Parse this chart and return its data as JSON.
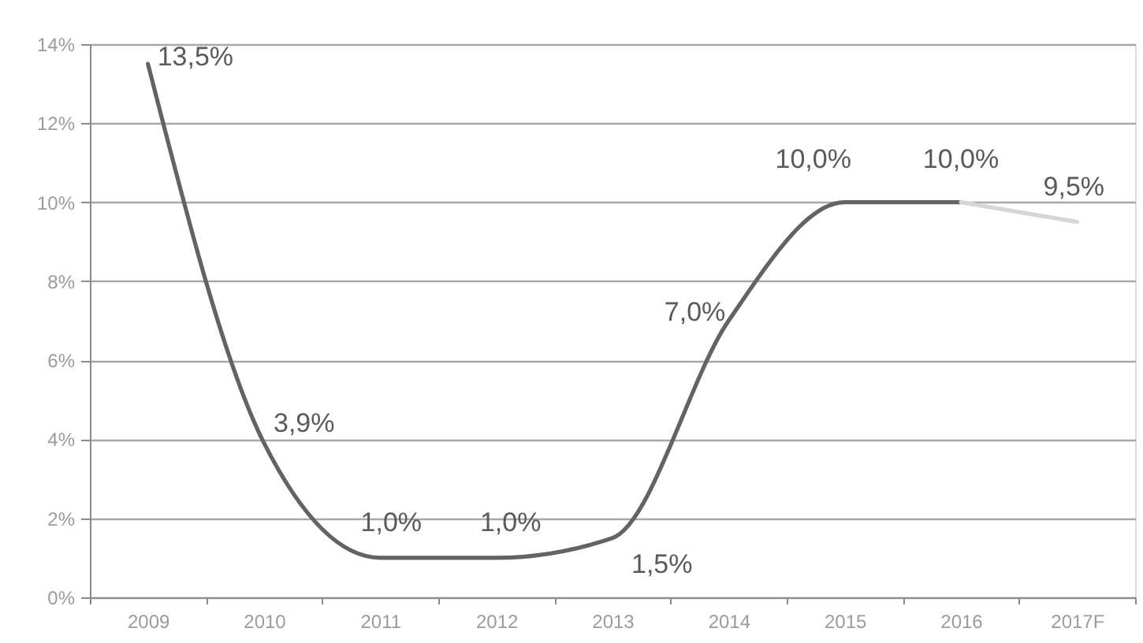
{
  "chart_data": {
    "type": "line",
    "categories": [
      "2009",
      "2010",
      "2011",
      "2012",
      "2013",
      "2014",
      "2015",
      "2016",
      "2017F"
    ],
    "series": [
      {
        "color": "#636363",
        "values": [
          13.5,
          3.9,
          1.0,
          1.0,
          1.5,
          7.0,
          10.0,
          10.0,
          null
        ],
        "value_labels": [
          "13,5%",
          "3,9%",
          "1,0%",
          "1,0%",
          "1,5%",
          "7,0%",
          "10,0%",
          "10,0%",
          null
        ]
      },
      {
        "color": "#d6d6d6",
        "values": [
          null,
          null,
          null,
          null,
          null,
          null,
          null,
          10.0,
          9.5
        ],
        "value_labels": [
          null,
          null,
          null,
          null,
          null,
          null,
          null,
          null,
          "9,5%"
        ]
      }
    ],
    "ylim": [
      0,
      14
    ],
    "yticks": [
      {
        "value": 0,
        "label": "0%"
      },
      {
        "value": 2,
        "label": "2%"
      },
      {
        "value": 4,
        "label": "4%"
      },
      {
        "value": 6,
        "label": "6%"
      },
      {
        "value": 8,
        "label": "8%"
      },
      {
        "value": 10,
        "label": "10%"
      },
      {
        "value": 12,
        "label": "12%"
      },
      {
        "value": 14,
        "label": "14%"
      }
    ],
    "grid": "y"
  }
}
